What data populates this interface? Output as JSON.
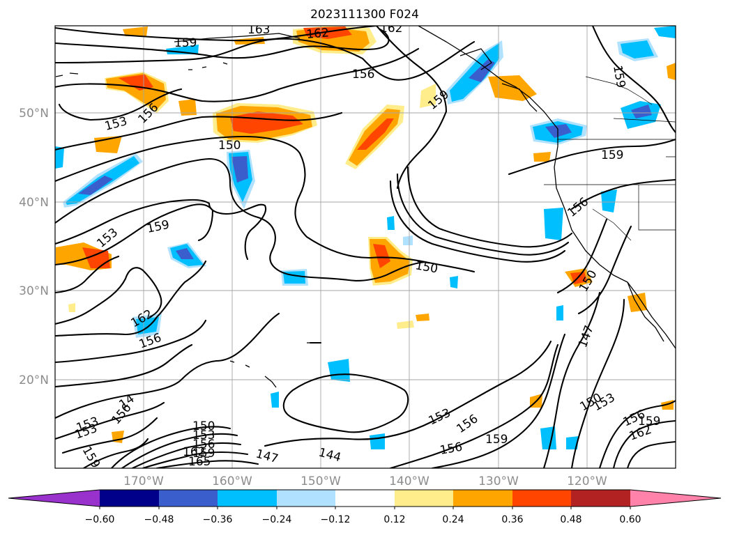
{
  "title": "2023111300 F024",
  "lat_ticks": [
    "50°N",
    "40°N",
    "30°N",
    "20°N"
  ],
  "lon_ticks": [
    "170°W",
    "160°W",
    "150°W",
    "140°W",
    "130°W",
    "120°W"
  ],
  "colorbar": {
    "ticks": [
      "−0.60",
      "−0.48",
      "−0.36",
      "−0.24",
      "−0.12",
      "0.12",
      "0.24",
      "0.36",
      "0.48",
      "0.60"
    ],
    "bin_colors": [
      "#9932cc",
      "#00008b",
      "#3a5fcd",
      "#00bfff",
      "#b0e2ff",
      "#ffffff",
      "#ffec8b",
      "#ffa500",
      "#ff4500",
      "#b22222",
      "#ff82ab"
    ],
    "extend": "both"
  },
  "contour_labels": [
    "159",
    "163",
    "162",
    "162",
    "156",
    "159",
    "153",
    "156",
    "150",
    "159",
    "159",
    "153",
    "159",
    "150",
    "162",
    "156",
    "147",
    "150",
    "156",
    "153",
    "144",
    "156",
    "153",
    "156",
    "159",
    "150",
    "153",
    "156",
    "159",
    "162",
    "14",
    "156",
    "153",
    "159",
    "150",
    "153",
    "156",
    "159",
    "162",
    "165",
    "147"
  ],
  "colors": {
    "warm_fill": "#ffa500",
    "warm_core": "#ff4500",
    "cool_fill": "#00bfff",
    "cool_core": "#3a5fcd",
    "light_warm": "#ffec8b",
    "light_cool": "#b0e2ff"
  }
}
